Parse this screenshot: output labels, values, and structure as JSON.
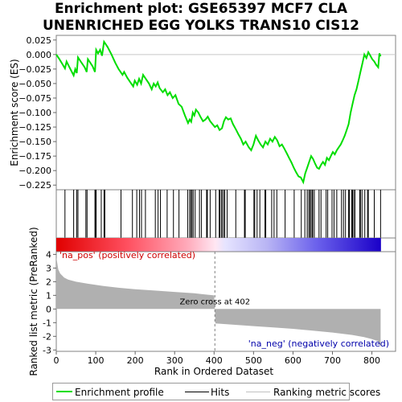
{
  "title_lines": [
    "Enrichment plot: GSE65397 MCF7 CLA",
    "UNENRICHED EGG YOLKS TRANS10 CIS12"
  ],
  "colors": {
    "es_line": "#00dd00",
    "hits": "#000000",
    "metric_fill": "#b0b0b0",
    "pos_label": "#cc0000",
    "neg_label": "#0000aa",
    "zero_line": "#808080"
  },
  "chart_data": {
    "type": "line",
    "title": "Enrichment plot: GSE65397 MCF7 CLA UNENRICHED EGG YOLKS TRANS10 CIS12",
    "es_panel": {
      "ylabel": "Enrichment score (ES)",
      "ylim": [
        -0.233,
        0.033
      ],
      "yticks": [
        0.025,
        0.0,
        -0.025,
        -0.05,
        -0.075,
        -0.1,
        -0.125,
        -0.15,
        -0.175,
        -0.2,
        -0.225
      ],
      "ytick_labels": [
        "0.025",
        "0.000",
        "−0.025",
        "−0.050",
        "−0.075",
        "−0.100",
        "−0.125",
        "−0.150",
        "−0.175",
        "−0.200",
        "−0.225"
      ],
      "points": [
        [
          0,
          0.0
        ],
        [
          8,
          -0.008
        ],
        [
          15,
          -0.016
        ],
        [
          22,
          -0.024
        ],
        [
          26,
          -0.012
        ],
        [
          32,
          -0.02
        ],
        [
          38,
          -0.028
        ],
        [
          44,
          -0.036
        ],
        [
          48,
          -0.025
        ],
        [
          52,
          -0.032
        ],
        [
          55,
          -0.005
        ],
        [
          60,
          -0.01
        ],
        [
          66,
          -0.016
        ],
        [
          72,
          -0.022
        ],
        [
          77,
          -0.03
        ],
        [
          80,
          -0.008
        ],
        [
          86,
          -0.014
        ],
        [
          92,
          -0.02
        ],
        [
          98,
          -0.03
        ],
        [
          101,
          0.008
        ],
        [
          106,
          0.002
        ],
        [
          111,
          0.008
        ],
        [
          116,
          -0.002
        ],
        [
          121,
          0.022
        ],
        [
          130,
          0.013
        ],
        [
          140,
          0.0
        ],
        [
          150,
          -0.015
        ],
        [
          158,
          -0.025
        ],
        [
          168,
          -0.035
        ],
        [
          172,
          -0.03
        ],
        [
          180,
          -0.04
        ],
        [
          190,
          -0.05
        ],
        [
          195,
          -0.055
        ],
        [
          199,
          -0.045
        ],
        [
          205,
          -0.052
        ],
        [
          210,
          -0.042
        ],
        [
          215,
          -0.05
        ],
        [
          220,
          -0.035
        ],
        [
          225,
          -0.04
        ],
        [
          235,
          -0.05
        ],
        [
          242,
          -0.06
        ],
        [
          247,
          -0.05
        ],
        [
          252,
          -0.055
        ],
        [
          257,
          -0.048
        ],
        [
          262,
          -0.058
        ],
        [
          270,
          -0.065
        ],
        [
          276,
          -0.06
        ],
        [
          282,
          -0.07
        ],
        [
          288,
          -0.065
        ],
        [
          295,
          -0.075
        ],
        [
          302,
          -0.07
        ],
        [
          310,
          -0.085
        ],
        [
          318,
          -0.09
        ],
        [
          326,
          -0.105
        ],
        [
          334,
          -0.118
        ],
        [
          338,
          -0.112
        ],
        [
          342,
          -0.116
        ],
        [
          346,
          -0.1
        ],
        [
          350,
          -0.105
        ],
        [
          354,
          -0.095
        ],
        [
          360,
          -0.1
        ],
        [
          366,
          -0.108
        ],
        [
          372,
          -0.115
        ],
        [
          378,
          -0.112
        ],
        [
          384,
          -0.107
        ],
        [
          390,
          -0.115
        ],
        [
          396,
          -0.12
        ],
        [
          402,
          -0.125
        ],
        [
          408,
          -0.122
        ],
        [
          414,
          -0.13
        ],
        [
          420,
          -0.127
        ],
        [
          425,
          -0.115
        ],
        [
          430,
          -0.108
        ],
        [
          436,
          -0.112
        ],
        [
          442,
          -0.11
        ],
        [
          448,
          -0.12
        ],
        [
          456,
          -0.13
        ],
        [
          462,
          -0.138
        ],
        [
          468,
          -0.145
        ],
        [
          474,
          -0.155
        ],
        [
          480,
          -0.15
        ],
        [
          488,
          -0.16
        ],
        [
          494,
          -0.165
        ],
        [
          500,
          -0.155
        ],
        [
          506,
          -0.14
        ],
        [
          512,
          -0.148
        ],
        [
          518,
          -0.155
        ],
        [
          524,
          -0.16
        ],
        [
          530,
          -0.15
        ],
        [
          536,
          -0.155
        ],
        [
          542,
          -0.145
        ],
        [
          548,
          -0.15
        ],
        [
          554,
          -0.142
        ],
        [
          560,
          -0.148
        ],
        [
          566,
          -0.158
        ],
        [
          572,
          -0.155
        ],
        [
          578,
          -0.162
        ],
        [
          584,
          -0.17
        ],
        [
          590,
          -0.178
        ],
        [
          596,
          -0.186
        ],
        [
          602,
          -0.195
        ],
        [
          608,
          -0.203
        ],
        [
          614,
          -0.21
        ],
        [
          620,
          -0.212
        ],
        [
          626,
          -0.22
        ],
        [
          631,
          -0.205
        ],
        [
          636,
          -0.195
        ],
        [
          641,
          -0.185
        ],
        [
          646,
          -0.175
        ],
        [
          651,
          -0.18
        ],
        [
          656,
          -0.188
        ],
        [
          661,
          -0.195
        ],
        [
          666,
          -0.197
        ],
        [
          671,
          -0.19
        ],
        [
          676,
          -0.185
        ],
        [
          681,
          -0.19
        ],
        [
          686,
          -0.178
        ],
        [
          691,
          -0.182
        ],
        [
          696,
          -0.175
        ],
        [
          701,
          -0.168
        ],
        [
          706,
          -0.172
        ],
        [
          711,
          -0.165
        ],
        [
          716,
          -0.16
        ],
        [
          721,
          -0.155
        ],
        [
          726,
          -0.148
        ],
        [
          731,
          -0.14
        ],
        [
          736,
          -0.13
        ],
        [
          741,
          -0.12
        ],
        [
          746,
          -0.1
        ],
        [
          751,
          -0.085
        ],
        [
          756,
          -0.07
        ],
        [
          761,
          -0.06
        ],
        [
          766,
          -0.045
        ],
        [
          771,
          -0.03
        ],
        [
          776,
          -0.015
        ],
        [
          781,
          0.0
        ],
        [
          786,
          -0.006
        ],
        [
          791,
          0.004
        ],
        [
          796,
          -0.002
        ],
        [
          801,
          -0.008
        ],
        [
          806,
          -0.012
        ],
        [
          811,
          -0.018
        ],
        [
          816,
          -0.022
        ],
        [
          819,
          0.002
        ],
        [
          822,
          -0.003
        ]
      ]
    },
    "ranked_metric_panel": {
      "ylabel": "Ranked list metric (PreRanked)",
      "xlabel": "Rank in Ordered Dataset",
      "xlim": [
        0,
        860
      ],
      "ylim": [
        -3.1,
        4.2
      ],
      "xticks": [
        0,
        100,
        200,
        300,
        400,
        500,
        600,
        700,
        800
      ],
      "yticks": [
        4,
        3,
        2,
        1,
        0,
        -1,
        -2,
        -3
      ],
      "curve": [
        [
          0,
          3.8
        ],
        [
          5,
          2.9
        ],
        [
          10,
          2.6
        ],
        [
          20,
          2.3
        ],
        [
          30,
          2.15
        ],
        [
          50,
          2.0
        ],
        [
          80,
          1.85
        ],
        [
          120,
          1.68
        ],
        [
          160,
          1.55
        ],
        [
          200,
          1.45
        ],
        [
          250,
          1.35
        ],
        [
          300,
          1.25
        ],
        [
          350,
          1.15
        ],
        [
          400,
          1.0
        ],
        [
          402,
          0.0
        ],
        [
          403,
          -1.05
        ],
        [
          450,
          -1.15
        ],
        [
          500,
          -1.25
        ],
        [
          550,
          -1.35
        ],
        [
          600,
          -1.45
        ],
        [
          650,
          -1.58
        ],
        [
          700,
          -1.72
        ],
        [
          750,
          -1.9
        ],
        [
          780,
          -2.05
        ],
        [
          800,
          -2.2
        ],
        [
          815,
          -2.35
        ],
        [
          822,
          -2.8
        ]
      ],
      "zero_cross_label": "Zero cross at 402",
      "zero_cross_rank": 402,
      "pos_label": "'na_pos' (positively correlated)",
      "neg_label": "'na_neg' (negatively correlated)"
    },
    "hits": [
      22,
      44,
      52,
      55,
      75,
      78,
      98,
      100,
      101,
      114,
      121,
      123,
      164,
      193,
      204,
      211,
      216,
      226,
      251,
      258,
      264,
      281,
      297,
      311,
      333,
      338,
      341,
      344,
      347,
      352,
      363,
      368,
      381,
      383,
      390,
      404,
      413,
      415,
      419,
      422,
      426,
      427,
      433,
      455,
      477,
      479,
      501,
      503,
      509,
      516,
      529,
      531,
      546,
      552,
      559,
      580,
      603,
      621,
      630,
      636,
      640,
      643,
      644,
      648,
      650,
      654,
      666,
      671,
      684,
      688,
      699,
      704,
      711,
      723,
      728,
      733,
      741,
      743,
      749,
      751,
      754,
      757,
      769,
      771,
      775,
      782,
      789,
      791,
      806,
      822
    ],
    "n_genes": 823,
    "legend": [
      "Enrichment profile",
      "Hits",
      "Ranking metric scores"
    ]
  }
}
